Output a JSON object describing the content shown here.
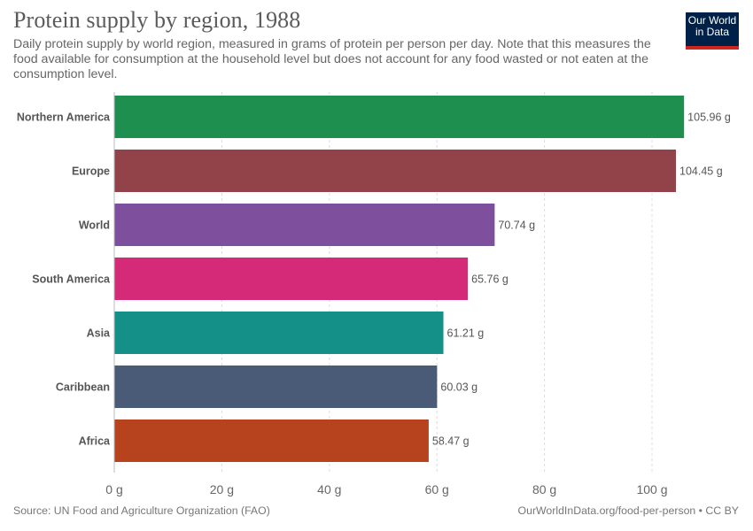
{
  "header": {
    "title": "Protein supply by region, 1988",
    "subtitle": "Daily protein supply by world region, measured in grams of protein per person per day. Note that this measures the food available for consumption at the household level but does not account for any food wasted or not eaten at the consumption level.",
    "logo_line1": "Our World",
    "logo_line2": "in Data",
    "logo_color": "#002147",
    "logo_accent": "#ce261e"
  },
  "footer": {
    "source": "Source: UN Food and Agriculture Organization (FAO)",
    "license": "OurWorldInData.org/food-per-person • CC BY"
  },
  "chart_data": {
    "type": "bar",
    "orientation": "horizontal",
    "categories": [
      "Northern America",
      "Europe",
      "World",
      "South America",
      "Asia",
      "Caribbean",
      "Africa"
    ],
    "values": [
      105.96,
      104.45,
      70.74,
      65.76,
      61.21,
      60.03,
      58.47
    ],
    "value_labels": [
      "105.96 g",
      "104.45 g",
      "70.74 g",
      "65.76 g",
      "61.21 g",
      "60.03 g",
      "58.47 g"
    ],
    "colors": [
      "#1f8f50",
      "#924349",
      "#7d4f9c",
      "#d42a77",
      "#159089",
      "#4a5b78",
      "#b6421e"
    ],
    "xticks": [
      0,
      20,
      40,
      60,
      80,
      100
    ],
    "xtick_labels": [
      "0 g",
      "20 g",
      "40 g",
      "60 g",
      "80 g",
      "100 g"
    ],
    "xlim": [
      0,
      110
    ],
    "grid": true,
    "xlabel": "",
    "ylabel": ""
  }
}
